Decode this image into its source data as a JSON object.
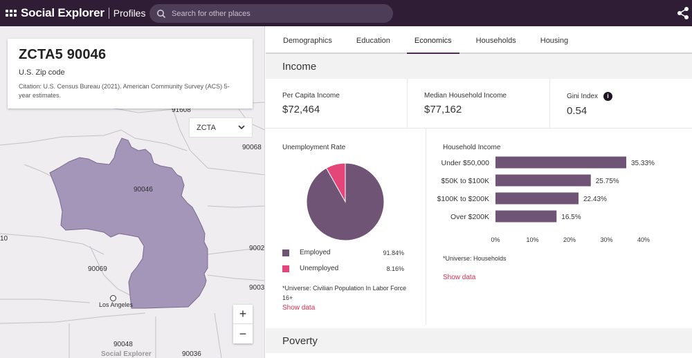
{
  "app": {
    "brand": "Social Explorer",
    "section": "Profiles"
  },
  "search": {
    "placeholder": "Search for other places"
  },
  "place": {
    "title": "ZCTA5 90046",
    "type": "U.S. Zip code",
    "citation": "Citation: U.S. Census Bureau (2021). American Community Survey (ACS) 5-year estimates."
  },
  "geo_select": {
    "value": "ZCTA"
  },
  "map": {
    "labels": [
      "91608",
      "90068",
      "90046",
      "10",
      "9002",
      "90069",
      "9003",
      "Los Angeles",
      "90048",
      "90036"
    ],
    "watermark": "Social Explorer",
    "zoom_in": "+",
    "zoom_out": "−"
  },
  "tabs": [
    "Demographics",
    "Education",
    "Economics",
    "Households",
    "Housing"
  ],
  "active_tab": "Economics",
  "income": {
    "heading": "Income",
    "stats": [
      {
        "label": "Per Capita Income",
        "value": "$72,464"
      },
      {
        "label": "Median Household Income",
        "value": "$77,162"
      },
      {
        "label": "Gini Index",
        "value": "0.54",
        "info": "i"
      }
    ]
  },
  "unemployment": {
    "title": "Unemployment Rate",
    "legend": [
      {
        "label": "Employed",
        "value": "91.84%",
        "color": "#705476"
      },
      {
        "label": "Unemployed",
        "value": "8.16%",
        "color": "#e5467a"
      }
    ],
    "universe": "*Universe: Civilian Population In Labor Force 16+",
    "show_data": "Show data"
  },
  "household_income": {
    "title": "Household Income",
    "universe": "*Universe: Households",
    "show_data": "Show data"
  },
  "chart_data": [
    {
      "type": "pie",
      "title": "Unemployment Rate",
      "categories": [
        "Employed",
        "Unemployed"
      ],
      "values": [
        91.84,
        8.16
      ],
      "colors": [
        "#705476",
        "#e5467a"
      ]
    },
    {
      "type": "bar",
      "orientation": "horizontal",
      "title": "Household Income",
      "categories": [
        "Under $50,000",
        "$50K to $100K",
        "$100K to $200K",
        "Over $200K"
      ],
      "values": [
        35.33,
        25.75,
        22.43,
        16.5
      ],
      "value_labels": [
        "35.33%",
        "25.75%",
        "22.43%",
        "16.5%"
      ],
      "xlim": [
        0,
        40
      ],
      "xticks": [
        "0%",
        "10%",
        "20%",
        "30%",
        "40%"
      ],
      "color": "#705476"
    }
  ],
  "poverty": {
    "heading": "Poverty"
  }
}
